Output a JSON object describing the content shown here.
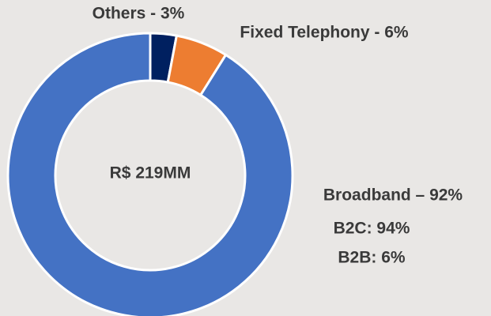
{
  "chart_data": {
    "type": "pie",
    "values": [
      3,
      6,
      92
    ],
    "value_labels": [
      "Others - 3%",
      "Fixed Telephony - 6%",
      "Broadband – 92%"
    ],
    "colors": [
      "#002060",
      "#ED7D31",
      "#4472C4"
    ],
    "donut": true,
    "annotations": [
      "R$ 219MM",
      "B2C: 94%",
      "B2B: 6%"
    ]
  }
}
